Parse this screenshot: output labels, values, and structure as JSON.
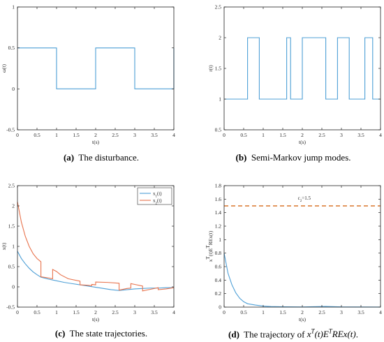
{
  "chart_data": [
    {
      "id": "a",
      "type": "line",
      "xlabel": "t(s)",
      "ylabel": "ω(t)",
      "xlim": [
        0,
        4
      ],
      "ylim": [
        -0.5,
        1
      ],
      "xticks": [
        0,
        0.5,
        1,
        1.5,
        2,
        2.5,
        3,
        3.5,
        4
      ],
      "yticks": [
        -0.5,
        0,
        0.5,
        1
      ],
      "ytick_labels": [
        "-0.5",
        "0",
        "0.5",
        "1"
      ],
      "grid": false,
      "series": [
        {
          "color": "#4d9fd6",
          "style": "step",
          "x": [
            0,
            1,
            1,
            2,
            2,
            3,
            3,
            4,
            4
          ],
          "y": [
            0.5,
            0.5,
            0,
            0,
            0.5,
            0.5,
            0,
            0,
            0.5
          ]
        }
      ]
    },
    {
      "id": "b",
      "type": "line",
      "xlabel": "t(s)",
      "ylabel": "r(t)",
      "xlim": [
        0,
        4
      ],
      "ylim": [
        0.5,
        2.5
      ],
      "xticks": [
        0,
        0.5,
        1,
        1.5,
        2,
        2.5,
        3,
        3.5,
        4
      ],
      "yticks": [
        0.5,
        1,
        1.5,
        2,
        2.5
      ],
      "ytick_labels": [
        "0.5",
        "1",
        "1.5",
        "2",
        "2.5"
      ],
      "grid": false,
      "series": [
        {
          "color": "#4d9fd6",
          "style": "step",
          "x": [
            0,
            0.6,
            0.6,
            0.9,
            0.9,
            1.6,
            1.6,
            1.7,
            1.7,
            1.9,
            1.9,
            2.0,
            2.0,
            2.6,
            2.6,
            2.9,
            2.9,
            3.2,
            3.2,
            3.6,
            3.6,
            3.8,
            3.8,
            4.0
          ],
          "y": [
            1,
            1,
            2,
            2,
            1,
            1,
            2,
            2,
            1,
            1,
            1,
            1,
            2,
            2,
            1,
            1,
            2,
            2,
            1,
            1,
            2,
            2,
            1,
            1
          ]
        }
      ]
    },
    {
      "id": "c",
      "type": "line",
      "xlabel": "t(s)",
      "ylabel": "x(t)",
      "xlim": [
        0,
        4
      ],
      "ylim": [
        -0.5,
        2.5
      ],
      "xticks": [
        0,
        0.5,
        1,
        1.5,
        2,
        2.5,
        3,
        3.5,
        4
      ],
      "yticks": [
        -0.5,
        0,
        0.5,
        1,
        1.5,
        2,
        2.5
      ],
      "ytick_labels": [
        "-0.5",
        "0",
        "0.5",
        "1",
        "1.5",
        "2",
        "2.5"
      ],
      "grid": false,
      "legend": "top-right",
      "series": [
        {
          "name": "x1(t)",
          "legend_main": "x",
          "legend_sub": "1",
          "legend_tail": "(t)",
          "color": "#4d9fd6",
          "x": [
            0,
            0.1,
            0.2,
            0.3,
            0.4,
            0.5,
            0.6,
            0.8,
            1.0,
            1.2,
            1.4,
            1.6,
            1.8,
            2.0,
            2.2,
            2.4,
            2.6,
            2.8,
            3.0,
            3.2,
            3.4,
            3.6,
            3.8,
            4.0
          ],
          "y": [
            0.88,
            0.7,
            0.57,
            0.46,
            0.37,
            0.3,
            0.24,
            0.19,
            0.15,
            0.11,
            0.08,
            0.05,
            0.02,
            -0.01,
            -0.04,
            -0.07,
            -0.09,
            -0.07,
            -0.05,
            -0.04,
            -0.03,
            -0.03,
            -0.02,
            -0.02
          ]
        },
        {
          "name": "x2(t)",
          "legend_main": "x",
          "legend_sub": "2",
          "legend_tail": "(t)",
          "color": "#e8734d",
          "x": [
            0,
            0.1,
            0.2,
            0.3,
            0.4,
            0.5,
            0.6,
            0.6,
            0.8,
            0.9,
            0.9,
            1.0,
            1.1,
            1.3,
            1.6,
            1.6,
            1.8,
            1.9,
            1.9,
            2.0,
            2.0,
            2.3,
            2.6,
            2.6,
            2.8,
            2.9,
            2.9,
            3.0,
            3.2,
            3.2,
            3.4,
            3.6,
            3.6,
            3.8,
            4.0
          ],
          "y": [
            2.1,
            1.6,
            1.25,
            1.0,
            0.82,
            0.7,
            0.62,
            0.25,
            0.22,
            0.2,
            0.43,
            0.38,
            0.3,
            0.2,
            0.14,
            0.05,
            0.04,
            0.03,
            0.06,
            0.05,
            0.12,
            0.11,
            0.09,
            -0.08,
            -0.04,
            -0.03,
            0.08,
            0.06,
            0.02,
            -0.1,
            -0.06,
            -0.02,
            -0.07,
            -0.05,
            -0.02
          ]
        }
      ]
    },
    {
      "id": "d",
      "type": "line",
      "xlabel": "t(s)",
      "ylabel_html": "x<tspan baseline-shift=\"super\" font-size=\"7\">T</tspan>(t)E<tspan baseline-shift=\"super\" font-size=\"7\">T</tspan>REx(t)",
      "ylabel": "x T (t)E T REx(t)",
      "xlim": [
        0,
        4
      ],
      "ylim": [
        0,
        1.8
      ],
      "xticks": [
        0,
        0.5,
        1,
        1.5,
        2,
        2.5,
        3,
        3.5,
        4
      ],
      "yticks": [
        0,
        0.2,
        0.4,
        0.6,
        0.8,
        1,
        1.2,
        1.4,
        1.6,
        1.8
      ],
      "ytick_labels": [
        "0",
        "0.2",
        "0.4",
        "0.6",
        "0.8",
        "1",
        "1.2",
        "1.4",
        "1.6",
        "1.8"
      ],
      "grid": false,
      "annotation": {
        "text_main": "c",
        "text_sub": "2",
        "text_tail": "=1.5",
        "text": "c2=1.5",
        "x": 2.05,
        "y": 1.57
      },
      "series": [
        {
          "color": "#4d9fd6",
          "x": [
            0,
            0.1,
            0.2,
            0.3,
            0.4,
            0.5,
            0.6,
            0.8,
            1.0,
            1.2,
            1.5,
            2.0,
            2.6,
            2.9,
            3.0,
            4.0
          ],
          "y": [
            0.8,
            0.5,
            0.33,
            0.21,
            0.13,
            0.08,
            0.05,
            0.03,
            0.015,
            0.008,
            0.004,
            0.002,
            0.01,
            0.005,
            0.003,
            0.001
          ]
        },
        {
          "color": "#d9762b",
          "style": "dashed",
          "x": [
            0,
            4
          ],
          "y": [
            1.5,
            1.5
          ]
        }
      ]
    }
  ],
  "captions": {
    "a": {
      "label": "(a)",
      "text": "The disturbance."
    },
    "b": {
      "label": "(b)",
      "text": "Semi-Markov jump modes."
    },
    "c": {
      "label": "(c)",
      "text": "The state trajectories."
    },
    "d": {
      "label": "(d)",
      "text": "The trajectory of"
    }
  }
}
